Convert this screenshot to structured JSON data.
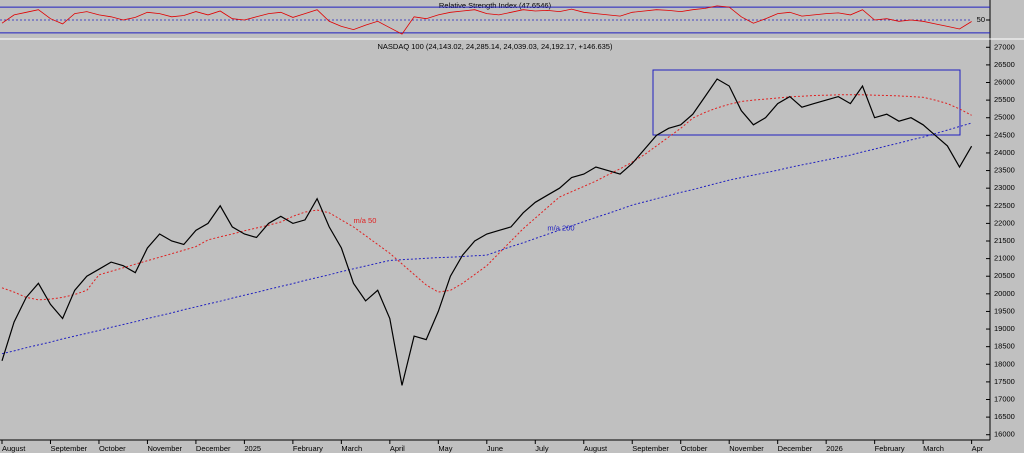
{
  "chart_data": [
    {
      "type": "line",
      "title": "Relative Strength Index (47.6546)",
      "color": "#e00000",
      "values": [
        45,
        58,
        62,
        66,
        52,
        44,
        60,
        63,
        58,
        55,
        50,
        54,
        62,
        60,
        55,
        57,
        63,
        58,
        64,
        52,
        50,
        55,
        60,
        62,
        54,
        60,
        66,
        48,
        40,
        35,
        42,
        48,
        38,
        28,
        55,
        52,
        58,
        62,
        64,
        66,
        60,
        58,
        62,
        66,
        64,
        65,
        63,
        67,
        62,
        60,
        58,
        56,
        62,
        64,
        66,
        65,
        63,
        66,
        68,
        72,
        70,
        55,
        45,
        52,
        60,
        62,
        56,
        58,
        60,
        61,
        58,
        66,
        50,
        52,
        48,
        50,
        48,
        44,
        40,
        36,
        47.6546
      ],
      "ylim": [
        22,
        78
      ],
      "yticks": [
        50
      ],
      "levels": [
        30,
        70
      ],
      "level_color": "#2020c0"
    },
    {
      "type": "line",
      "title": "NASDAQ 100 (24,143.02, 24,285.14, 24,039.03, 24,192.17, +146.635)",
      "color": "#000000",
      "categories": [
        "August",
        null,
        null,
        null,
        "September",
        null,
        null,
        null,
        "October",
        null,
        null,
        null,
        "November",
        null,
        null,
        null,
        "December",
        null,
        null,
        null,
        "2025",
        null,
        null,
        null,
        "February",
        null,
        null,
        null,
        "March",
        null,
        null,
        null,
        "April",
        null,
        null,
        null,
        "May",
        null,
        null,
        null,
        "June",
        null,
        null,
        null,
        "July",
        null,
        null,
        null,
        "August",
        null,
        null,
        null,
        "September",
        null,
        null,
        null,
        "October",
        null,
        null,
        null,
        "November",
        null,
        null,
        null,
        "December",
        null,
        null,
        null,
        "2026",
        null,
        null,
        null,
        "February",
        null,
        null,
        null,
        "March",
        null,
        null,
        null,
        "Apr"
      ],
      "values": [
        18100,
        19200,
        19900,
        20300,
        19700,
        19300,
        20100,
        20500,
        20700,
        20900,
        20800,
        20600,
        21300,
        21700,
        21500,
        21400,
        21800,
        22000,
        22500,
        21900,
        21700,
        21600,
        22000,
        22200,
        22000,
        22100,
        22700,
        21900,
        21300,
        20300,
        19800,
        20100,
        19300,
        17400,
        18800,
        18700,
        19500,
        20500,
        21100,
        21500,
        21700,
        21800,
        21900,
        22300,
        22600,
        22800,
        23000,
        23300,
        23400,
        23600,
        23500,
        23400,
        23700,
        24100,
        24500,
        24700,
        24800,
        25100,
        25600,
        26100,
        25900,
        25200,
        24800,
        25000,
        25400,
        25600,
        25300,
        25400,
        25500,
        25600,
        25400,
        25900,
        25000,
        25100,
        24900,
        25000,
        24800,
        24500,
        24200,
        23600,
        24192.17
      ],
      "series": [
        {
          "name": "m/a 50",
          "color": "#e02020",
          "values": [
            20170,
            20050,
            19900,
            19830,
            19850,
            19900,
            19980,
            20100,
            20540,
            20640,
            20740,
            20840,
            20940,
            21040,
            21140,
            21240,
            21340,
            21530,
            21620,
            21700,
            21790,
            21870,
            21950,
            22040,
            22200,
            22320,
            22380,
            22300,
            22100,
            21900,
            21650,
            21400,
            21150,
            20850,
            20550,
            20250,
            20050,
            20100,
            20300,
            20550,
            20800,
            21150,
            21500,
            21850,
            22150,
            22450,
            22750,
            22900,
            23050,
            23200,
            23380,
            23550,
            23740,
            23950,
            24200,
            24450,
            24700,
            24990,
            25150,
            25280,
            25380,
            25460,
            25500,
            25530,
            25560,
            25590,
            25610,
            25630,
            25640,
            25650,
            25650,
            25650,
            25640,
            25630,
            25620,
            25600,
            25580,
            25500,
            25400,
            25250,
            25070
          ]
        },
        {
          "name": "m/a 200",
          "color": "#2020c0",
          "values": [
            18300,
            18380,
            18470,
            18550,
            18630,
            18720,
            18800,
            18880,
            18960,
            19050,
            19130,
            19210,
            19300,
            19380,
            19460,
            19550,
            19630,
            19710,
            19790,
            19880,
            19960,
            20040,
            20130,
            20210,
            20290,
            20380,
            20460,
            20540,
            20630,
            20710,
            20790,
            20870,
            20950,
            20970,
            20990,
            21010,
            21030,
            21040,
            21060,
            21080,
            21100,
            21220,
            21340,
            21450,
            21570,
            21690,
            21810,
            21930,
            22050,
            22170,
            22280,
            22400,
            22520,
            22610,
            22700,
            22790,
            22880,
            22960,
            23050,
            23140,
            23230,
            23300,
            23370,
            23440,
            23510,
            23590,
            23660,
            23730,
            23800,
            23870,
            23940,
            24030,
            24110,
            24200,
            24280,
            24370,
            24450,
            24550,
            24650,
            24750,
            24850
          ]
        }
      ],
      "ylim": [
        15850,
        27150
      ],
      "yticks": [
        16000,
        16500,
        17000,
        17500,
        18000,
        18500,
        19000,
        19500,
        20000,
        20500,
        21000,
        21500,
        22000,
        22500,
        23000,
        23500,
        24000,
        24500,
        25000,
        25500,
        26000,
        26500,
        27000
      ]
    }
  ]
}
